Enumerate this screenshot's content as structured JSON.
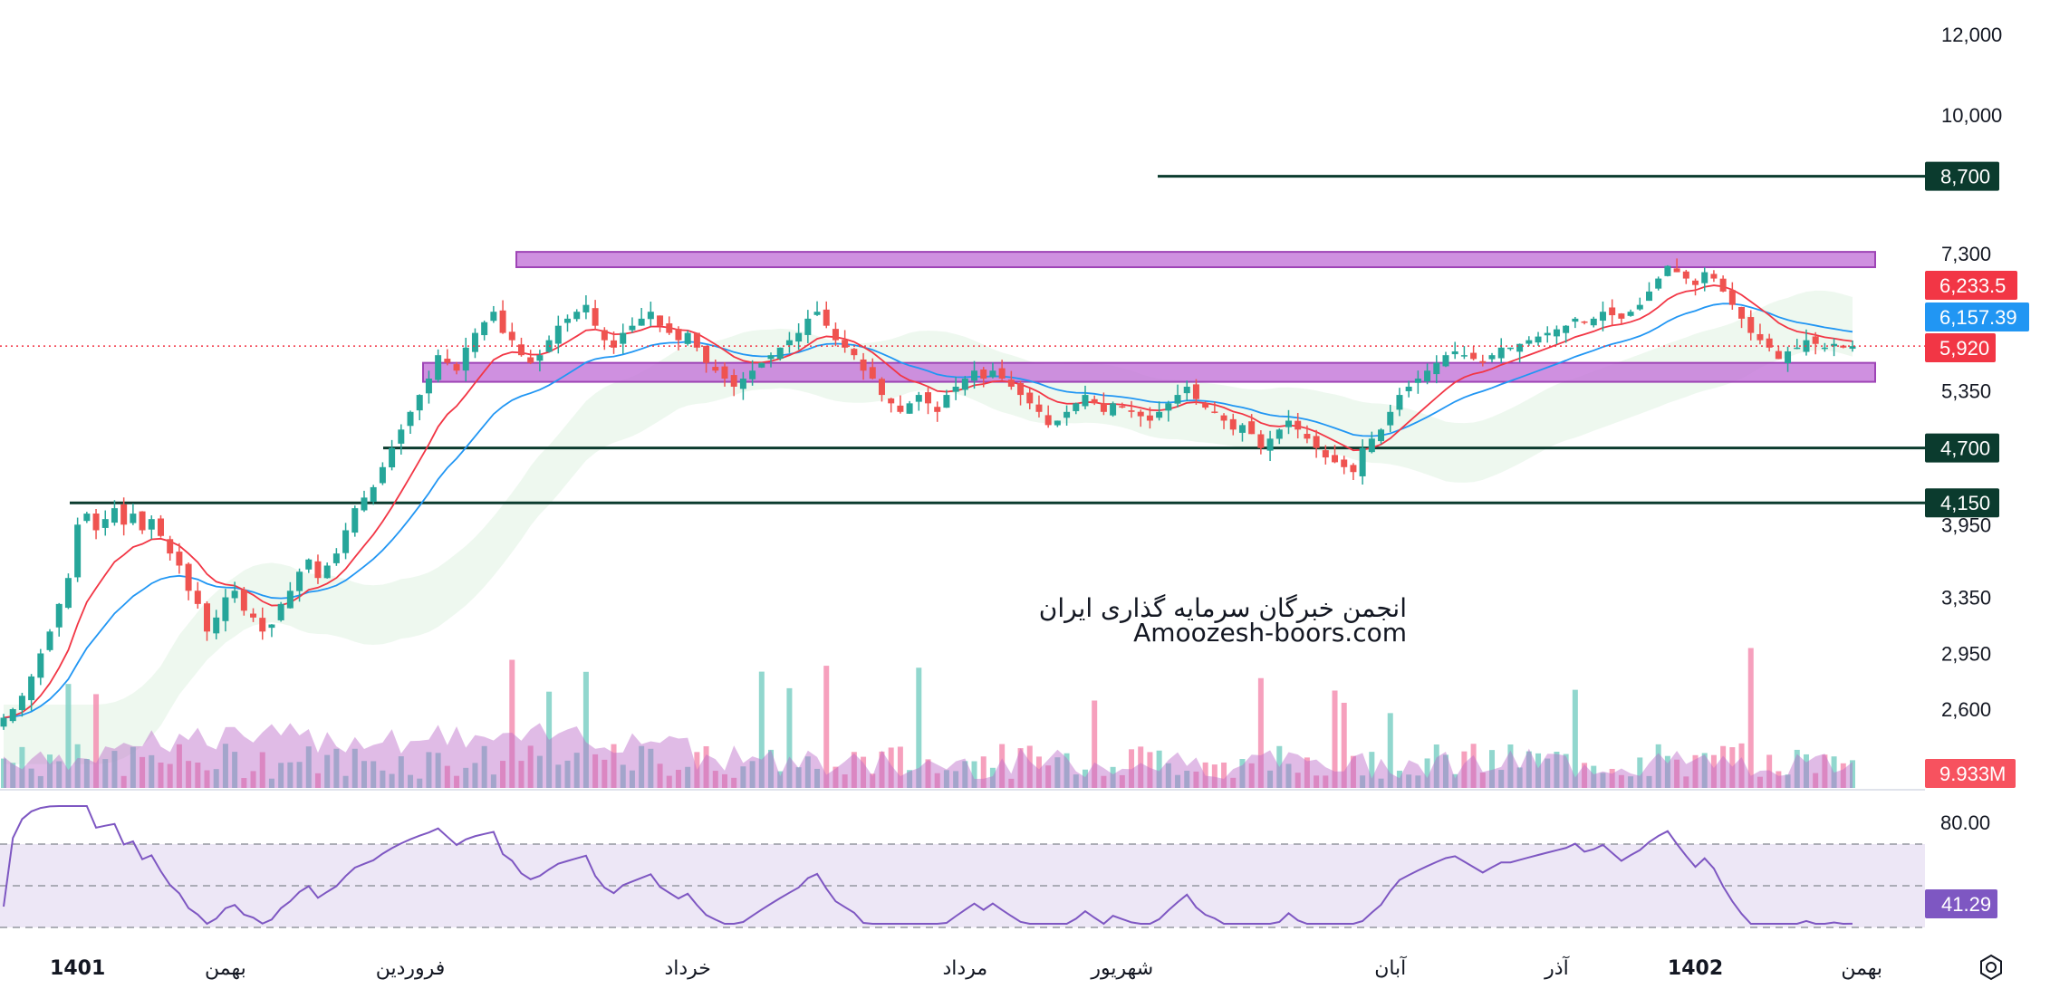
{
  "chart_data": {
    "type": "candlestick",
    "price_axis": {
      "scale": "log",
      "ticks": [
        "12,000",
        "10,000",
        "7,300",
        "5,350",
        "3,950",
        "3,350",
        "2,950",
        "2,600"
      ],
      "tick_values": [
        12000,
        10000,
        7300,
        5350,
        3950,
        3350,
        2950,
        2600
      ],
      "range": [
        2400,
        13000
      ]
    },
    "time_axis": {
      "labels": [
        {
          "text": "1401",
          "bold": true,
          "index": 8
        },
        {
          "text": "بهمن",
          "bold": false,
          "index": 24
        },
        {
          "text": "فروردین",
          "bold": false,
          "index": 44
        },
        {
          "text": "خرداد",
          "bold": false,
          "index": 74
        },
        {
          "text": "مرداد",
          "bold": false,
          "index": 104
        },
        {
          "text": "شهریور",
          "bold": false,
          "index": 121
        },
        {
          "text": "آبان",
          "bold": false,
          "index": 150
        },
        {
          "text": "آذر",
          "bold": false,
          "index": 168
        },
        {
          "text": "1402",
          "bold": true,
          "index": 183
        },
        {
          "text": "بهمن",
          "bold": false,
          "index": 201
        }
      ]
    },
    "close_series": [
      2550,
      2600,
      2680,
      2800,
      2950,
      3100,
      3300,
      3500,
      3950,
      4050,
      3900,
      4000,
      4100,
      3950,
      4050,
      3900,
      4000,
      3850,
      3700,
      3600,
      3400,
      3300,
      3100,
      3200,
      3350,
      3400,
      3250,
      3200,
      3100,
      3150,
      3300,
      3400,
      3550,
      3650,
      3500,
      3600,
      3700,
      3900,
      4100,
      4200,
      4300,
      4500,
      4700,
      4900,
      5100,
      5300,
      5500,
      5800,
      5700,
      5600,
      5900,
      6100,
      6250,
      6400,
      6100,
      6000,
      5800,
      5700,
      5800,
      6000,
      6200,
      6300,
      6400,
      6500,
      6200,
      6000,
      5900,
      6100,
      6200,
      6300,
      6400,
      6200,
      6100,
      6000,
      6100,
      5900,
      5700,
      5600,
      5500,
      5400,
      5500,
      5600,
      5700,
      5800,
      5900,
      6000,
      6100,
      6300,
      6400,
      6200,
      6000,
      5900,
      5800,
      5600,
      5500,
      5300,
      5200,
      5100,
      5200,
      5300,
      5200,
      5100,
      5300,
      5400,
      5500,
      5600,
      5500,
      5600,
      5500,
      5400,
      5300,
      5200,
      5100,
      4950,
      5000,
      5100,
      5200,
      5300,
      5200,
      5100,
      5200,
      5150,
      5100,
      5050,
      5000,
      5100,
      5200,
      5300,
      5400,
      5250,
      5150,
      5100,
      5000,
      4900,
      4950,
      4850,
      4700,
      4800,
      4900,
      5000,
      4900,
      4800,
      4700,
      4600,
      4550,
      4500,
      4450,
      4700,
      4800,
      4900,
      5100,
      5300,
      5400,
      5500,
      5600,
      5700,
      5800,
      5850,
      5800,
      5750,
      5700,
      5800,
      5900,
      5900,
      5950,
      6000,
      6050,
      6100,
      6150,
      6200,
      6300,
      6250,
      6300,
      6400,
      6350,
      6300,
      6400,
      6500,
      6700,
      6900,
      7100,
      7000,
      6900,
      6800,
      7000,
      6900,
      6700,
      6500,
      6300,
      6100,
      6000,
      5900,
      5750,
      5850,
      5900,
      6000,
      5950,
      5900,
      5950,
      5900,
      5920
    ],
    "indicators": {
      "ma_red_label": "6,233.5",
      "ma_blue_label": "6,157.39",
      "last_price_label": "5,920",
      "volume_label": "9.933M",
      "rsi_value_label": "41.29",
      "rsi_level_label": "80.00"
    },
    "horizontal_levels": [
      {
        "value": 8700,
        "label": "8,700"
      },
      {
        "value": 4700,
        "label": "4,700"
      },
      {
        "value": 4150,
        "label": "4,150"
      }
    ],
    "zones": [
      {
        "low": 7080,
        "high": 7330
      },
      {
        "low": 5460,
        "high": 5700
      }
    ],
    "colors": {
      "up": "#26a69a",
      "down": "#ef5350",
      "ma_red": "#f23645",
      "ma_blue": "#2196f3",
      "level": "#0b3b2e",
      "zone_fill": "#c77ddb",
      "zone_border": "#8e24aa",
      "rsi_line": "#7e57c2",
      "rsi_band": "#ede7f6",
      "price_line": "#f23645"
    }
  },
  "watermark": {
    "line1": "انجمن خبرگان سرمایه گذاری ایران",
    "line2": "Amoozesh-boors.com"
  },
  "settings_icon": "gear-icon"
}
